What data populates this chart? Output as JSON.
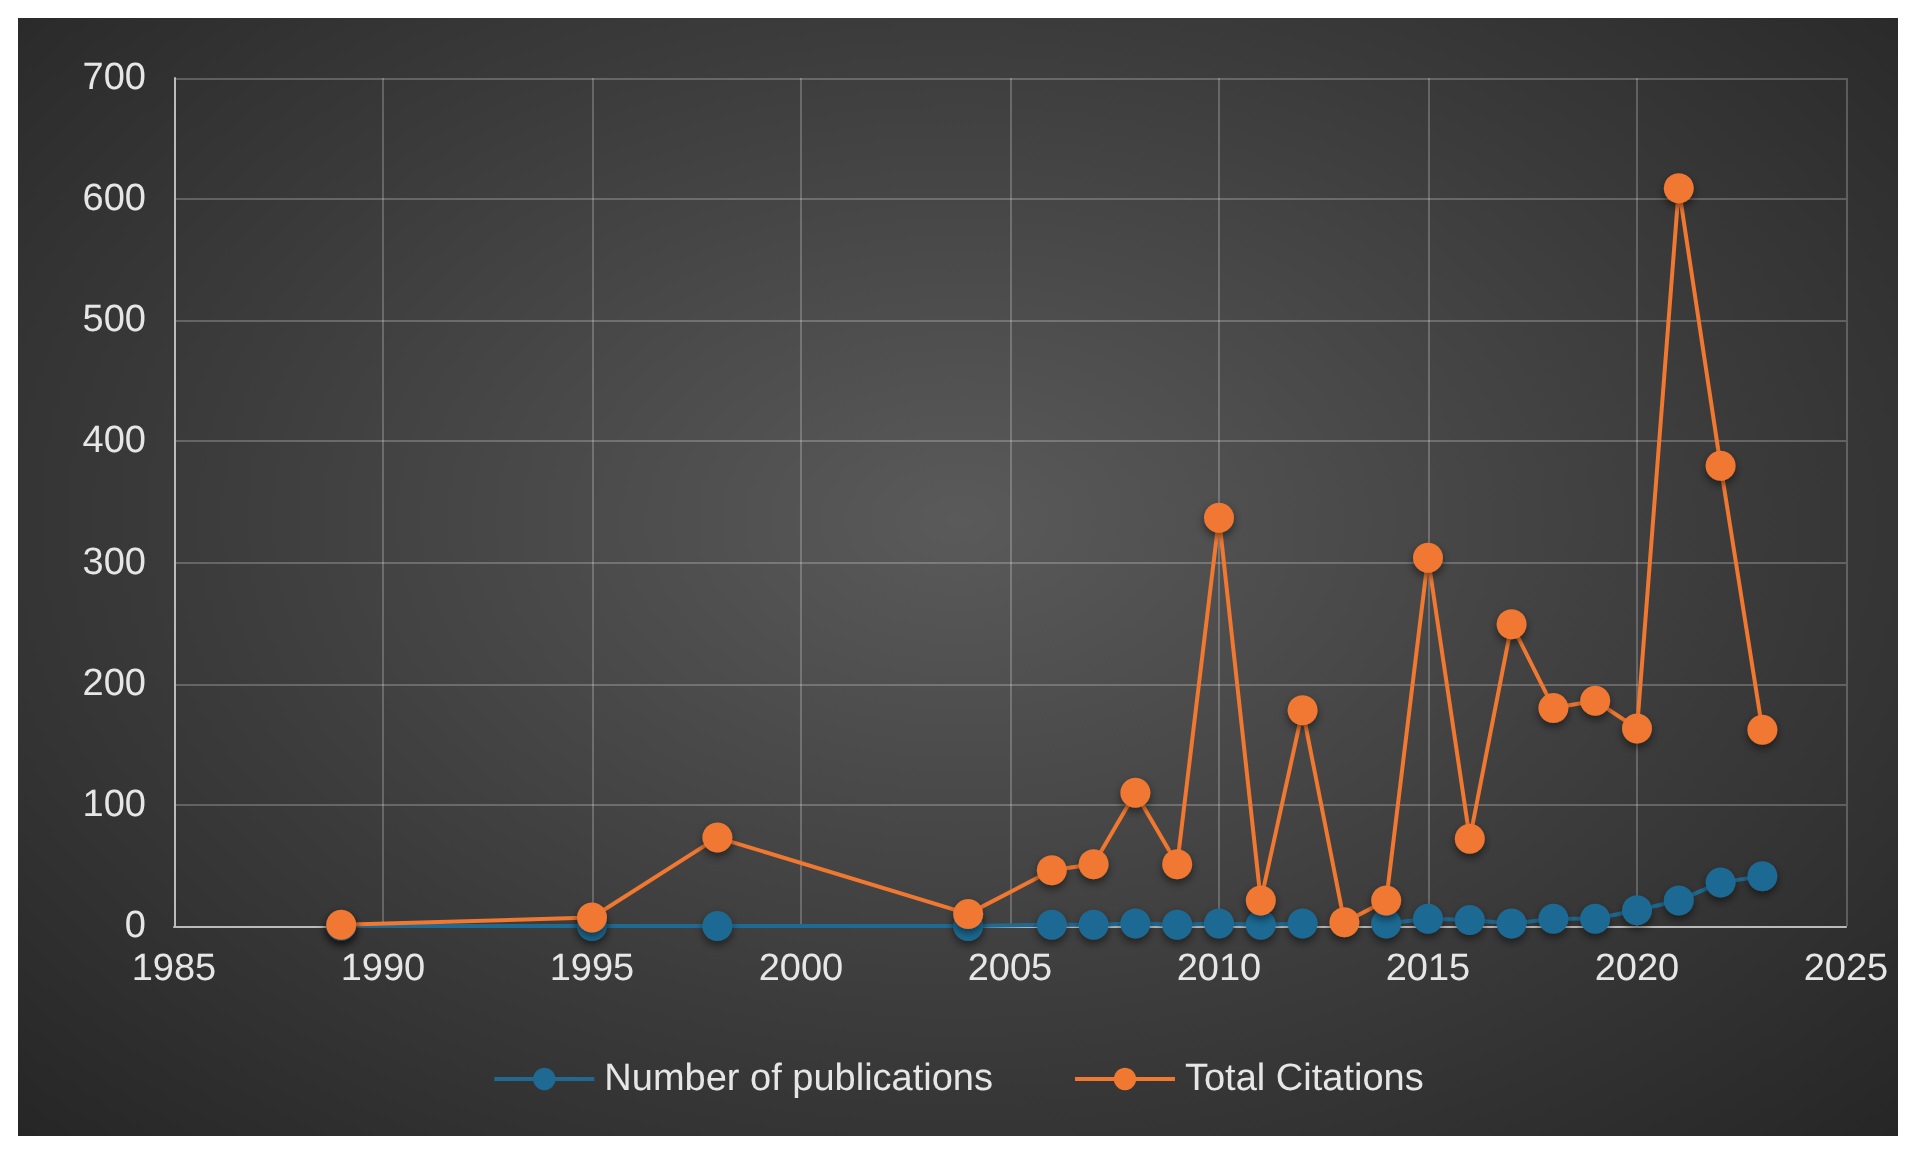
{
  "chart_data": {
    "type": "line",
    "x": [
      1989,
      1995,
      1998,
      2004,
      2006,
      2007,
      2008,
      2009,
      2010,
      2011,
      2012,
      2013,
      2014,
      2015,
      2016,
      2017,
      2018,
      2019,
      2020,
      2021,
      2022,
      2023
    ],
    "series": [
      {
        "name": "Number of publications",
        "color": "#1f6a93",
        "values": [
          0,
          0,
          0,
          0,
          1,
          1,
          2,
          1,
          2,
          1,
          2,
          null,
          2,
          6,
          5,
          2,
          6,
          6,
          13,
          21,
          36,
          41
        ]
      },
      {
        "name": "Total Citations",
        "color": "#f07830",
        "values": [
          1,
          7,
          73,
          10,
          46,
          51,
          110,
          51,
          337,
          21,
          178,
          3,
          21,
          304,
          72,
          249,
          180,
          186,
          163,
          609,
          380,
          162
        ]
      }
    ],
    "xlim": [
      1985,
      2025
    ],
    "xticks": [
      1985,
      1990,
      1995,
      2000,
      2005,
      2010,
      2015,
      2020,
      2025
    ],
    "ylim": [
      0,
      700
    ],
    "yticks": [
      0,
      100,
      200,
      300,
      400,
      500,
      600,
      700
    ],
    "grid": true,
    "legend": "bottom",
    "marker": "circle",
    "line_style": "solid"
  }
}
